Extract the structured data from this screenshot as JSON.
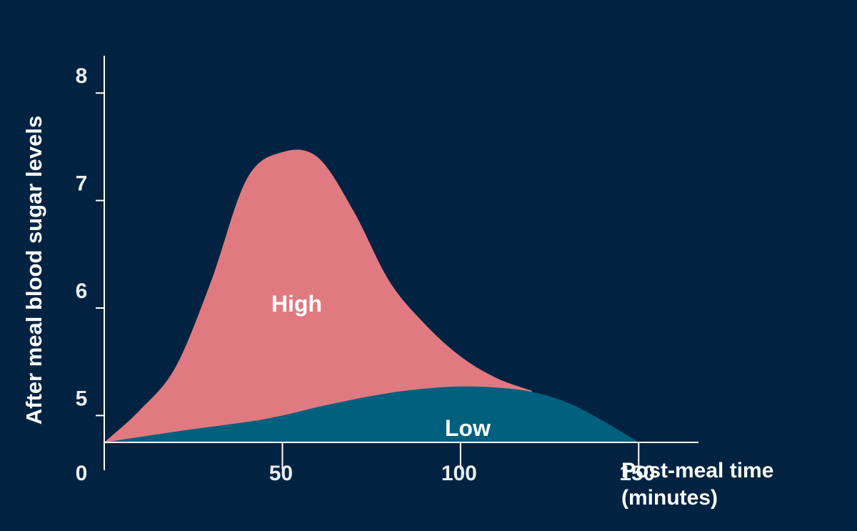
{
  "chart_data": {
    "type": "area",
    "xlabel_lines": [
      "Post-meal time",
      "(minutes)"
    ],
    "ylabel": "After meal blood sugar levels",
    "x_ticks": [
      0,
      50,
      100,
      150
    ],
    "y_ticks": [
      5,
      6,
      7,
      8
    ],
    "xlim": [
      0,
      175
    ],
    "ylim": [
      4.75,
      8.5
    ],
    "grid": false,
    "series": [
      {
        "name": "High",
        "color": "#E07A80",
        "x": [
          0,
          10,
          20,
          30,
          40,
          50,
          60,
          70,
          80,
          90,
          100,
          110,
          120
        ],
        "y": [
          4.75,
          5.05,
          5.45,
          6.25,
          7.2,
          7.45,
          7.4,
          6.9,
          6.25,
          5.85,
          5.55,
          5.35,
          5.23
        ]
      },
      {
        "name": "Low",
        "color": "#00607E",
        "x": [
          0,
          20,
          40,
          50,
          60,
          70,
          80,
          90,
          100,
          110,
          120,
          130,
          140,
          150
        ],
        "y": [
          4.75,
          4.85,
          4.94,
          5.0,
          5.08,
          5.15,
          5.21,
          5.25,
          5.27,
          5.26,
          5.22,
          5.12,
          4.95,
          4.75
        ]
      }
    ]
  }
}
